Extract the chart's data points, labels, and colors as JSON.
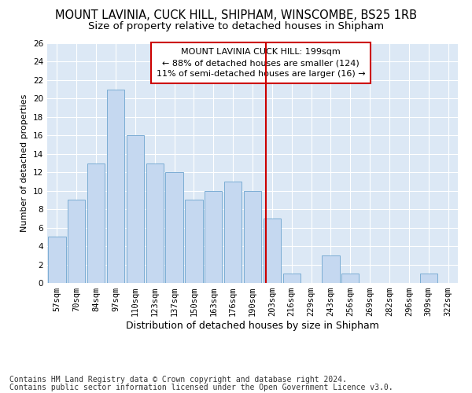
{
  "title1": "MOUNT LAVINIA, CUCK HILL, SHIPHAM, WINSCOMBE, BS25 1RB",
  "title2": "Size of property relative to detached houses in Shipham",
  "xlabel": "Distribution of detached houses by size in Shipham",
  "ylabel": "Number of detached properties",
  "categories": [
    "57sqm",
    "70sqm",
    "84sqm",
    "97sqm",
    "110sqm",
    "123sqm",
    "137sqm",
    "150sqm",
    "163sqm",
    "176sqm",
    "190sqm",
    "203sqm",
    "216sqm",
    "229sqm",
    "243sqm",
    "256sqm",
    "269sqm",
    "282sqm",
    "296sqm",
    "309sqm",
    "322sqm"
  ],
  "values": [
    5,
    9,
    13,
    21,
    16,
    13,
    12,
    9,
    10,
    11,
    10,
    7,
    1,
    0,
    3,
    1,
    0,
    0,
    0,
    1,
    0
  ],
  "bar_color": "#c5d8f0",
  "bar_edge_color": "#7badd4",
  "vline_color": "#cc0000",
  "legend_text1": "MOUNT LAVINIA CUCK HILL: 199sqm",
  "legend_text2": "← 88% of detached houses are smaller (124)",
  "legend_text3": "11% of semi-detached houses are larger (16) →",
  "legend_box_color": "#cc0000",
  "ylim": [
    0,
    26
  ],
  "yticks": [
    0,
    2,
    4,
    6,
    8,
    10,
    12,
    14,
    16,
    18,
    20,
    22,
    24,
    26
  ],
  "footer1": "Contains HM Land Registry data © Crown copyright and database right 2024.",
  "footer2": "Contains public sector information licensed under the Open Government Licence v3.0.",
  "fig_bg_color": "#ffffff",
  "plot_bg_color": "#dce8f5",
  "title1_fontsize": 10.5,
  "title2_fontsize": 9.5,
  "xlabel_fontsize": 9,
  "ylabel_fontsize": 8,
  "tick_fontsize": 7.5,
  "legend_fontsize": 8,
  "footer_fontsize": 7
}
